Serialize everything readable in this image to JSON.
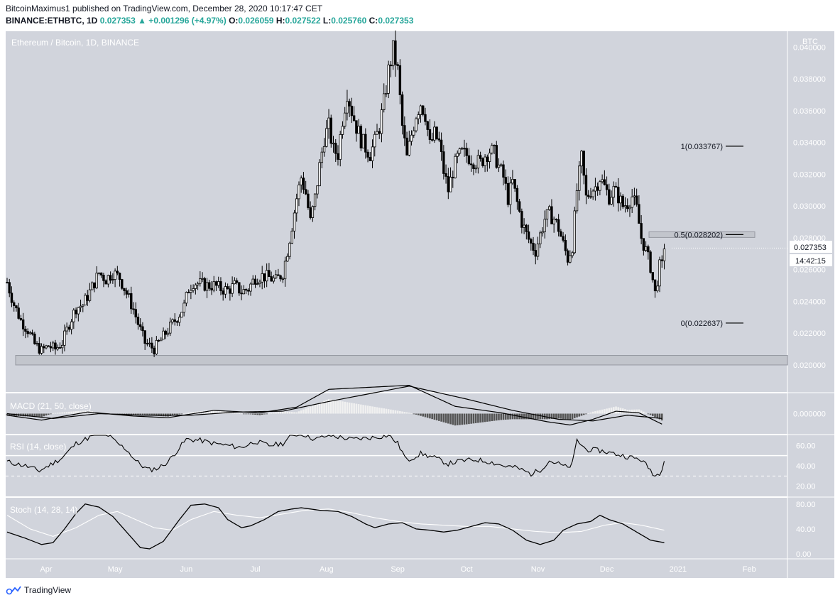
{
  "header": {
    "line1": "BitcoinMaximus1 published on TradingView.com, December 28, 2020 10:17:47 CET",
    "symbol": "BINANCE:ETHBTC, 1D",
    "last": "0.027353",
    "change": "▲ +0.001296 (+4.97%)",
    "o_label": "O:",
    "o_value": "0.026059",
    "h_label": "H:",
    "h_value": "0.027522",
    "l_label": "L:",
    "l_value": "0.025760",
    "c_label": "C:",
    "c_value": "0.027353"
  },
  "footer": {
    "brand": "TradingView"
  },
  "colors": {
    "panel_bg": "#d1d4dc",
    "candle": "#000000",
    "fib_box": "#c2c5cc",
    "white_line": "#ffffff"
  },
  "chart_data": {
    "type": "candlestick",
    "title": "Ethereum / Bitcoin, 1D, BINANCE",
    "currency": "BTC",
    "price_ticks": [
      "0.040000",
      "0.038000",
      "0.036000",
      "0.034000",
      "0.032000",
      "0.030000",
      "0.028000",
      "0.026000",
      "0.024000",
      "0.022000",
      "0.020000"
    ],
    "price_tick_values": [
      0.04,
      0.038,
      0.036,
      0.034,
      0.032,
      0.03,
      0.028,
      0.026,
      0.024,
      0.022,
      0.02
    ],
    "ylim": [
      0.0183,
      0.041
    ],
    "x_ticks": [
      "Apr",
      "May",
      "Jun",
      "Jul",
      "Aug",
      "Sep",
      "Oct",
      "Nov",
      "Dec",
      "2021",
      "Feb"
    ],
    "x_tick_days": [
      17,
      47,
      78,
      108,
      139,
      170,
      200,
      231,
      261,
      292,
      323
    ],
    "days_span": [
      0,
      339
    ],
    "last_price_label": "0.027353",
    "countdown": "14:42:15",
    "fib_levels": [
      {
        "label": "1(0.033767)",
        "value": 0.033767
      },
      {
        "label": "0.5(0.028202)",
        "value": 0.028202
      },
      {
        "label": "0(0.022637)",
        "value": 0.022637
      }
    ],
    "support_zone": [
      0.02,
      0.0206
    ],
    "anchors": [
      [
        0,
        0.0252
      ],
      [
        3,
        0.0238
      ],
      [
        6,
        0.0228
      ],
      [
        9,
        0.0222
      ],
      [
        12,
        0.0213
      ],
      [
        15,
        0.0209
      ],
      [
        18,
        0.0212
      ],
      [
        21,
        0.021
      ],
      [
        24,
        0.0214
      ],
      [
        27,
        0.0226
      ],
      [
        30,
        0.0236
      ],
      [
        33,
        0.0238
      ],
      [
        36,
        0.0246
      ],
      [
        38,
        0.0252
      ],
      [
        40,
        0.0258
      ],
      [
        43,
        0.0254
      ],
      [
        46,
        0.0258
      ],
      [
        49,
        0.0255
      ],
      [
        52,
        0.0245
      ],
      [
        55,
        0.0235
      ],
      [
        57,
        0.0226
      ],
      [
        60,
        0.0214
      ],
      [
        62,
        0.0212
      ],
      [
        64,
        0.021
      ],
      [
        66,
        0.0214
      ],
      [
        69,
        0.022
      ],
      [
        72,
        0.0226
      ],
      [
        75,
        0.0232
      ],
      [
        77,
        0.0237
      ],
      [
        79,
        0.0248
      ],
      [
        81,
        0.0252
      ],
      [
        84,
        0.0251
      ],
      [
        87,
        0.025
      ],
      [
        90,
        0.025
      ],
      [
        93,
        0.0248
      ],
      [
        96,
        0.0247
      ],
      [
        99,
        0.025
      ],
      [
        102,
        0.0246
      ],
      [
        105,
        0.0248
      ],
      [
        108,
        0.0255
      ],
      [
        111,
        0.0256
      ],
      [
        114,
        0.0255
      ],
      [
        117,
        0.0253
      ],
      [
        120,
        0.0258
      ],
      [
        122,
        0.0272
      ],
      [
        124,
        0.0288
      ],
      [
        126,
        0.0305
      ],
      [
        128,
        0.0318
      ],
      [
        130,
        0.0308
      ],
      [
        132,
        0.029
      ],
      [
        134,
        0.0305
      ],
      [
        136,
        0.0325
      ],
      [
        138,
        0.0343
      ],
      [
        140,
        0.035
      ],
      [
        142,
        0.0335
      ],
      [
        144,
        0.0333
      ],
      [
        146,
        0.0355
      ],
      [
        148,
        0.0372
      ],
      [
        150,
        0.036
      ],
      [
        152,
        0.035
      ],
      [
        154,
        0.0342
      ],
      [
        156,
        0.0337
      ],
      [
        158,
        0.0333
      ],
      [
        160,
        0.034
      ],
      [
        162,
        0.035
      ],
      [
        164,
        0.0365
      ],
      [
        166,
        0.0385
      ],
      [
        168,
        0.0398
      ],
      [
        170,
        0.0385
      ],
      [
        172,
        0.035
      ],
      [
        174,
        0.033
      ],
      [
        176,
        0.0345
      ],
      [
        178,
        0.0358
      ],
      [
        180,
        0.0365
      ],
      [
        182,
        0.0358
      ],
      [
        184,
        0.0338
      ],
      [
        186,
        0.0345
      ],
      [
        188,
        0.034
      ],
      [
        190,
        0.0322
      ],
      [
        192,
        0.031
      ],
      [
        194,
        0.0322
      ],
      [
        196,
        0.033
      ],
      [
        198,
        0.0333
      ],
      [
        200,
        0.0332
      ],
      [
        202,
        0.033
      ],
      [
        204,
        0.0328
      ],
      [
        206,
        0.0327
      ],
      [
        208,
        0.0332
      ],
      [
        210,
        0.0335
      ],
      [
        212,
        0.0333
      ],
      [
        214,
        0.0325
      ],
      [
        216,
        0.0318
      ],
      [
        218,
        0.0305
      ],
      [
        220,
        0.0315
      ],
      [
        222,
        0.0302
      ],
      [
        224,
        0.029
      ],
      [
        226,
        0.0282
      ],
      [
        228,
        0.0276
      ],
      [
        230,
        0.0272
      ],
      [
        232,
        0.0282
      ],
      [
        234,
        0.0292
      ],
      [
        236,
        0.0295
      ],
      [
        238,
        0.0292
      ],
      [
        240,
        0.0286
      ],
      [
        242,
        0.0276
      ],
      [
        244,
        0.0267
      ],
      [
        246,
        0.0275
      ],
      [
        248,
        0.031
      ],
      [
        250,
        0.033
      ],
      [
        252,
        0.0305
      ],
      [
        254,
        0.031
      ],
      [
        256,
        0.0312
      ],
      [
        258,
        0.0318
      ],
      [
        260,
        0.0312
      ],
      [
        262,
        0.0306
      ],
      [
        264,
        0.031
      ],
      [
        266,
        0.0306
      ],
      [
        268,
        0.03
      ],
      [
        270,
        0.0302
      ],
      [
        272,
        0.0306
      ],
      [
        274,
        0.0298
      ],
      [
        276,
        0.028
      ],
      [
        278,
        0.0272
      ],
      [
        280,
        0.0262
      ],
      [
        282,
        0.0245
      ],
      [
        284,
        0.0262
      ],
      [
        285,
        0.0262
      ],
      [
        286,
        0.0273
      ]
    ],
    "macd": {
      "label": "MACD (21, 50, close)",
      "ticks": [
        "0.000000"
      ],
      "tick_values": [
        0
      ],
      "ylim": [
        -0.0025,
        0.0025
      ],
      "macd_anchors": [
        [
          0,
          -0.0002
        ],
        [
          15,
          -0.0008
        ],
        [
          35,
          0.0002
        ],
        [
          55,
          -0.0003
        ],
        [
          70,
          -0.0005
        ],
        [
          90,
          0.0004
        ],
        [
          110,
          0.0001
        ],
        [
          126,
          0.0008
        ],
        [
          140,
          0.003
        ],
        [
          175,
          0.0035
        ],
        [
          195,
          0.0009
        ],
        [
          215,
          0.0001
        ],
        [
          235,
          -0.001
        ],
        [
          245,
          -0.0014
        ],
        [
          255,
          -0.0007
        ],
        [
          265,
          0.0003
        ],
        [
          275,
          0.0001
        ],
        [
          285,
          -0.0013
        ]
      ],
      "signal_anchors": [
        [
          0,
          0.0
        ],
        [
          20,
          -0.0006
        ],
        [
          40,
          0.0
        ],
        [
          60,
          -0.0002
        ],
        [
          80,
          -0.0002
        ],
        [
          100,
          0.0002
        ],
        [
          120,
          0.0003
        ],
        [
          140,
          0.0015
        ],
        [
          175,
          0.0034
        ],
        [
          200,
          0.0018
        ],
        [
          220,
          0.0004
        ],
        [
          240,
          -0.0007
        ],
        [
          255,
          -0.0009
        ],
        [
          270,
          -0.0002
        ],
        [
          285,
          -0.0006
        ]
      ]
    },
    "rsi": {
      "label": "RSI (14, close)",
      "ticks": [
        "60.00",
        "40.00",
        "20.00"
      ],
      "tick_values": [
        60,
        40,
        20
      ],
      "ylim": [
        10,
        70
      ],
      "bands": [
        50,
        30
      ],
      "anchors": [
        [
          0,
          44
        ],
        [
          8,
          40
        ],
        [
          14,
          35
        ],
        [
          18,
          40
        ],
        [
          24,
          48
        ],
        [
          30,
          62
        ],
        [
          36,
          68
        ],
        [
          40,
          72
        ],
        [
          44,
          70
        ],
        [
          48,
          62
        ],
        [
          52,
          56
        ],
        [
          56,
          45
        ],
        [
          60,
          38
        ],
        [
          62,
          36
        ],
        [
          66,
          38
        ],
        [
          70,
          44
        ],
        [
          74,
          55
        ],
        [
          78,
          66
        ],
        [
          84,
          65
        ],
        [
          90,
          62
        ],
        [
          96,
          60
        ],
        [
          102,
          58
        ],
        [
          108,
          64
        ],
        [
          114,
          60
        ],
        [
          120,
          62
        ],
        [
          124,
          70
        ],
        [
          128,
          72
        ],
        [
          134,
          66
        ],
        [
          140,
          70
        ],
        [
          150,
          66
        ],
        [
          160,
          68
        ],
        [
          166,
          70
        ],
        [
          170,
          62
        ],
        [
          174,
          45
        ],
        [
          180,
          52
        ],
        [
          186,
          48
        ],
        [
          192,
          42
        ],
        [
          198,
          45
        ],
        [
          204,
          46
        ],
        [
          210,
          44
        ],
        [
          216,
          40
        ],
        [
          222,
          38
        ],
        [
          228,
          32
        ],
        [
          232,
          36
        ],
        [
          236,
          45
        ],
        [
          240,
          42
        ],
        [
          244,
          38
        ],
        [
          246,
          42
        ],
        [
          248,
          65
        ],
        [
          252,
          56
        ],
        [
          258,
          55
        ],
        [
          264,
          52
        ],
        [
          270,
          49
        ],
        [
          276,
          46
        ],
        [
          280,
          36
        ],
        [
          282,
          30
        ],
        [
          284,
          33
        ],
        [
          285,
          38
        ],
        [
          286,
          47
        ]
      ]
    },
    "stoch": {
      "label": "Stoch (14, 28, 14)",
      "ticks": [
        "80.00",
        "40.00",
        "0.00"
      ],
      "tick_values": [
        80,
        40,
        0
      ],
      "ylim": [
        -8,
        90
      ],
      "k_anchors": [
        [
          0,
          35
        ],
        [
          8,
          25
        ],
        [
          15,
          15
        ],
        [
          20,
          18
        ],
        [
          25,
          40
        ],
        [
          30,
          65
        ],
        [
          34,
          80
        ],
        [
          40,
          75
        ],
        [
          46,
          60
        ],
        [
          52,
          35
        ],
        [
          58,
          10
        ],
        [
          62,
          8
        ],
        [
          68,
          20
        ],
        [
          75,
          55
        ],
        [
          80,
          78
        ],
        [
          86,
          80
        ],
        [
          92,
          74
        ],
        [
          96,
          55
        ],
        [
          102,
          42
        ],
        [
          106,
          45
        ],
        [
          112,
          55
        ],
        [
          118,
          68
        ],
        [
          124,
          72
        ],
        [
          128,
          74
        ],
        [
          136,
          70
        ],
        [
          144,
          68
        ],
        [
          150,
          60
        ],
        [
          156,
          48
        ],
        [
          160,
          42
        ],
        [
          166,
          48
        ],
        [
          172,
          50
        ],
        [
          178,
          40
        ],
        [
          184,
          38
        ],
        [
          190,
          35
        ],
        [
          196,
          38
        ],
        [
          202,
          44
        ],
        [
          208,
          50
        ],
        [
          214,
          48
        ],
        [
          220,
          38
        ],
        [
          226,
          22
        ],
        [
          232,
          15
        ],
        [
          238,
          22
        ],
        [
          242,
          38
        ],
        [
          248,
          48
        ],
        [
          254,
          52
        ],
        [
          258,
          62
        ],
        [
          262,
          55
        ],
        [
          268,
          48
        ],
        [
          274,
          35
        ],
        [
          280,
          22
        ],
        [
          286,
          18
        ]
      ],
      "d_anchors": [
        [
          0,
          62
        ],
        [
          10,
          40
        ],
        [
          20,
          28
        ],
        [
          30,
          42
        ],
        [
          40,
          62
        ],
        [
          48,
          68
        ],
        [
          56,
          55
        ],
        [
          64,
          42
        ],
        [
          72,
          38
        ],
        [
          80,
          55
        ],
        [
          90,
          68
        ],
        [
          100,
          62
        ],
        [
          110,
          58
        ],
        [
          120,
          64
        ],
        [
          130,
          70
        ],
        [
          140,
          72
        ],
        [
          150,
          66
        ],
        [
          160,
          58
        ],
        [
          170,
          52
        ],
        [
          180,
          48
        ],
        [
          190,
          46
        ],
        [
          200,
          44
        ],
        [
          210,
          44
        ],
        [
          220,
          40
        ],
        [
          230,
          36
        ],
        [
          240,
          34
        ],
        [
          250,
          36
        ],
        [
          260,
          46
        ],
        [
          268,
          50
        ],
        [
          276,
          46
        ],
        [
          286,
          38
        ]
      ]
    }
  }
}
